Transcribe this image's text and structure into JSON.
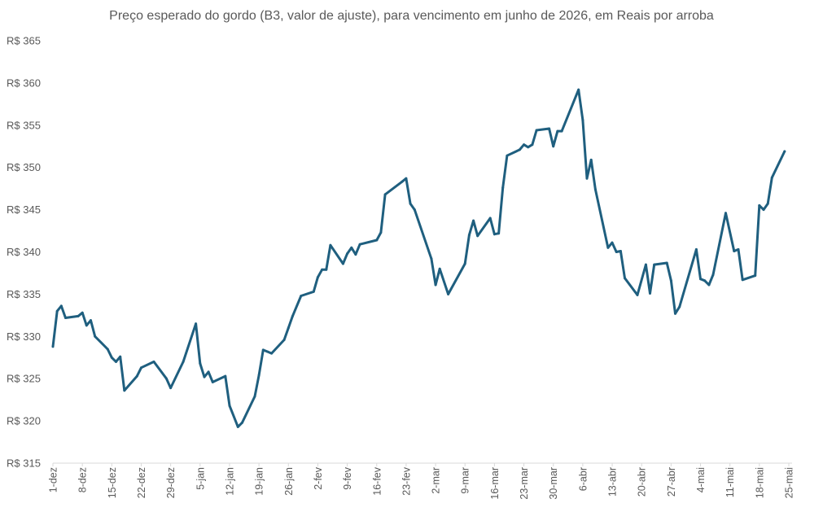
{
  "chart_data": {
    "type": "line",
    "title": "Preço esperado do gordo (B3, valor de ajuste), para vencimento em junho de 2026, em Reais por arroba",
    "xlabel": "",
    "ylabel": "",
    "ylim": [
      315,
      365
    ],
    "y_ticks": [
      315,
      320,
      325,
      330,
      335,
      340,
      345,
      350,
      355,
      360,
      365
    ],
    "y_tick_prefix": "R$ ",
    "grid": false,
    "legend": "none",
    "line_color": "#1f5f7f",
    "x_ticks": [
      {
        "day": 0,
        "label": "1-dez"
      },
      {
        "day": 7,
        "label": "8-dez"
      },
      {
        "day": 14,
        "label": "15-dez"
      },
      {
        "day": 21,
        "label": "22-dez"
      },
      {
        "day": 28,
        "label": "29-dez"
      },
      {
        "day": 35,
        "label": "5-jan"
      },
      {
        "day": 42,
        "label": "12-jan"
      },
      {
        "day": 49,
        "label": "19-jan"
      },
      {
        "day": 56,
        "label": "26-jan"
      },
      {
        "day": 63,
        "label": "2-fev"
      },
      {
        "day": 70,
        "label": "9-fev"
      },
      {
        "day": 77,
        "label": "16-fev"
      },
      {
        "day": 84,
        "label": "23-fev"
      },
      {
        "day": 91,
        "label": "2-mar"
      },
      {
        "day": 98,
        "label": "9-mar"
      },
      {
        "day": 105,
        "label": "16-mar"
      },
      {
        "day": 112,
        "label": "23-mar"
      },
      {
        "day": 119,
        "label": "30-mar"
      },
      {
        "day": 126,
        "label": "6-abr"
      },
      {
        "day": 133,
        "label": "13-abr"
      },
      {
        "day": 140,
        "label": "20-abr"
      },
      {
        "day": 147,
        "label": "27-abr"
      },
      {
        "day": 154,
        "label": "4-mai"
      },
      {
        "day": 161,
        "label": "11-mai"
      },
      {
        "day": 168,
        "label": "18-mai"
      },
      {
        "day": 175,
        "label": "25-mai"
      }
    ],
    "series": [
      {
        "values": [
          [
            0,
            328.8
          ],
          [
            1,
            333.0
          ],
          [
            2,
            333.6
          ],
          [
            3,
            332.2
          ],
          [
            6,
            332.4
          ],
          [
            7,
            332.8
          ],
          [
            8,
            331.3
          ],
          [
            9,
            331.9
          ],
          [
            10,
            330.0
          ],
          [
            13,
            328.5
          ],
          [
            14,
            327.5
          ],
          [
            15,
            327.0
          ],
          [
            16,
            327.6
          ],
          [
            17,
            323.6
          ],
          [
            20,
            325.3
          ],
          [
            21,
            326.3
          ],
          [
            24,
            327.0
          ],
          [
            27,
            325.0
          ],
          [
            28,
            323.9
          ],
          [
            31,
            327.0
          ],
          [
            34,
            331.5
          ],
          [
            35,
            326.8
          ],
          [
            36,
            325.2
          ],
          [
            37,
            325.8
          ],
          [
            38,
            324.6
          ],
          [
            41,
            325.3
          ],
          [
            42,
            321.8
          ],
          [
            44,
            319.3
          ],
          [
            45,
            319.8
          ],
          [
            48,
            322.9
          ],
          [
            49,
            325.4
          ],
          [
            50,
            328.4
          ],
          [
            51,
            328.2
          ],
          [
            52,
            328.0
          ],
          [
            55,
            329.6
          ],
          [
            56,
            331.0
          ],
          [
            57,
            332.4
          ],
          [
            59,
            334.8
          ],
          [
            62,
            335.3
          ],
          [
            63,
            337.0
          ],
          [
            64,
            337.9
          ],
          [
            65,
            337.9
          ],
          [
            66,
            340.8
          ],
          [
            69,
            338.6
          ],
          [
            70,
            339.8
          ],
          [
            71,
            340.5
          ],
          [
            72,
            339.7
          ],
          [
            73,
            340.9
          ],
          [
            77,
            341.4
          ],
          [
            78,
            342.3
          ],
          [
            79,
            346.8
          ],
          [
            83,
            348.3
          ],
          [
            84,
            348.7
          ],
          [
            85,
            345.7
          ],
          [
            86,
            345.0
          ],
          [
            90,
            339.2
          ],
          [
            91,
            336.1
          ],
          [
            92,
            338.0
          ],
          [
            94,
            335.0
          ],
          [
            98,
            338.6
          ],
          [
            99,
            342.0
          ],
          [
            100,
            343.7
          ],
          [
            101,
            341.9
          ],
          [
            104,
            344.0
          ],
          [
            105,
            342.1
          ],
          [
            106,
            342.2
          ],
          [
            107,
            347.6
          ],
          [
            108,
            351.4
          ],
          [
            111,
            352.1
          ],
          [
            112,
            352.7
          ],
          [
            113,
            352.4
          ],
          [
            114,
            352.7
          ],
          [
            115,
            354.4
          ],
          [
            118,
            354.6
          ],
          [
            119,
            352.5
          ],
          [
            120,
            354.3
          ],
          [
            121,
            354.3
          ],
          [
            125,
            359.2
          ],
          [
            126,
            355.6
          ],
          [
            127,
            348.7
          ],
          [
            128,
            350.9
          ],
          [
            129,
            347.4
          ],
          [
            132,
            340.5
          ],
          [
            133,
            341.1
          ],
          [
            134,
            340.0
          ],
          [
            135,
            340.1
          ],
          [
            136,
            336.9
          ],
          [
            139,
            334.9
          ],
          [
            141,
            338.5
          ],
          [
            142,
            335.1
          ],
          [
            143,
            338.5
          ],
          [
            146,
            338.7
          ],
          [
            147,
            336.6
          ],
          [
            148,
            332.7
          ],
          [
            149,
            333.5
          ],
          [
            153,
            340.3
          ],
          [
            154,
            336.8
          ],
          [
            155,
            336.6
          ],
          [
            156,
            336.1
          ],
          [
            157,
            337.3
          ],
          [
            160,
            344.6
          ],
          [
            162,
            340.1
          ],
          [
            163,
            340.3
          ],
          [
            164,
            336.7
          ],
          [
            167,
            337.2
          ],
          [
            168,
            345.5
          ],
          [
            169,
            345.0
          ],
          [
            170,
            345.7
          ],
          [
            171,
            348.8
          ],
          [
            174,
            351.9
          ]
        ]
      }
    ]
  }
}
